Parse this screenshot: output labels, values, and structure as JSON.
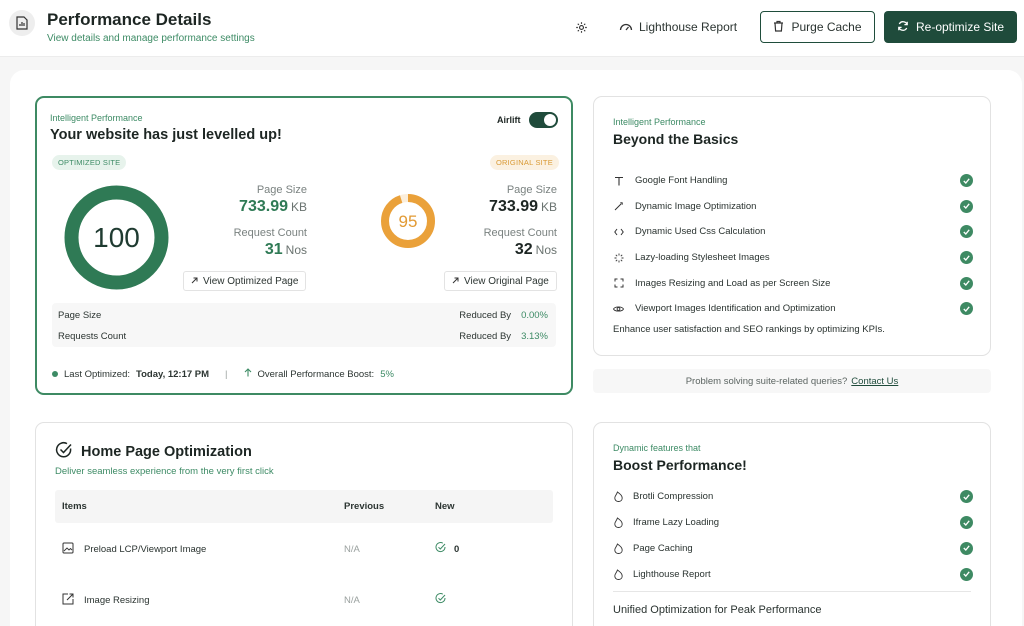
{
  "header": {
    "title": "Performance Details",
    "subtitle": "View details and manage performance settings",
    "lighthouse_label": "Lighthouse Report",
    "purge_label": "Purge Cache",
    "reoptimize_label": "Re-optimize Site"
  },
  "performance": {
    "eyebrow": "Intelligent Performance",
    "heading": "Your website has just levelled up!",
    "airlift_label": "Airlift",
    "airlift_on": true,
    "optimized": {
      "badge": "OPTIMIZED SITE",
      "score": "100",
      "score_fraction": 1.0,
      "page_size_label": "Page Size",
      "page_size_value": "733.99",
      "page_size_unit": "KB",
      "request_label": "Request Count",
      "request_value": "31",
      "request_unit": "Nos",
      "link_label": "View Optimized Page",
      "color": "#2f7a55"
    },
    "original": {
      "badge": "ORIGINAL SITE",
      "score": "95",
      "score_fraction": 0.95,
      "page_size_label": "Page Size",
      "page_size_value": "733.99",
      "page_size_unit": "KB",
      "request_label": "Request Count",
      "request_value": "32",
      "request_unit": "Nos",
      "link_label": "View Original Page",
      "color": "#eaa13a"
    },
    "summary": {
      "rows": [
        {
          "label": "Page Size",
          "reduced_label": "Reduced By",
          "value": "0.00%"
        },
        {
          "label": "Requests Count",
          "reduced_label": "Reduced By",
          "value": "3.13%"
        }
      ]
    },
    "footer": {
      "last_optimized_label": "Last Optimized:",
      "last_optimized_value": "Today, 12:17 PM",
      "boost_label": "Overall Performance Boost:",
      "boost_value": "5%"
    }
  },
  "beyond": {
    "eyebrow": "Intelligent Performance",
    "heading": "Beyond the Basics",
    "items": [
      {
        "label": "Google Font Handling",
        "icon": "text-icon"
      },
      {
        "label": "Dynamic Image Optimization",
        "icon": "magic-wand-icon"
      },
      {
        "label": "Dynamic Used Css Calculation",
        "icon": "code-icon"
      },
      {
        "label": "Lazy-loading Stylesheet Images",
        "icon": "loader-icon"
      },
      {
        "label": "Images Resizing and Load as per Screen Size",
        "icon": "expand-icon"
      },
      {
        "label": "Viewport Images Identification and Optimization",
        "icon": "eye-icon"
      }
    ],
    "note": "Enhance user satisfaction and SEO rankings by optimizing KPIs."
  },
  "help": {
    "text": "Problem solving suite-related queries?",
    "link": "Contact Us"
  },
  "home": {
    "title": "Home Page Optimization",
    "subtitle": "Deliver seamless experience from the very first click",
    "columns": [
      "Items",
      "Previous",
      "New"
    ],
    "rows": [
      {
        "item": "Preload LCP/Viewport Image",
        "previous": "N/A",
        "new": "0"
      },
      {
        "item": "Image Resizing",
        "previous": "N/A",
        "new": ""
      }
    ]
  },
  "boost": {
    "eyebrow": "Dynamic features that",
    "heading": "Boost Performance!",
    "items": [
      {
        "label": "Brotli Compression"
      },
      {
        "label": "Iframe Lazy Loading"
      },
      {
        "label": "Page Caching"
      },
      {
        "label": "Lighthouse Report"
      }
    ],
    "footer": "Unified Optimization for Peak Performance"
  },
  "colors": {
    "brand": "#1f4b3b",
    "accent_green": "#3d8b65",
    "accent_orange": "#eaa13a"
  }
}
